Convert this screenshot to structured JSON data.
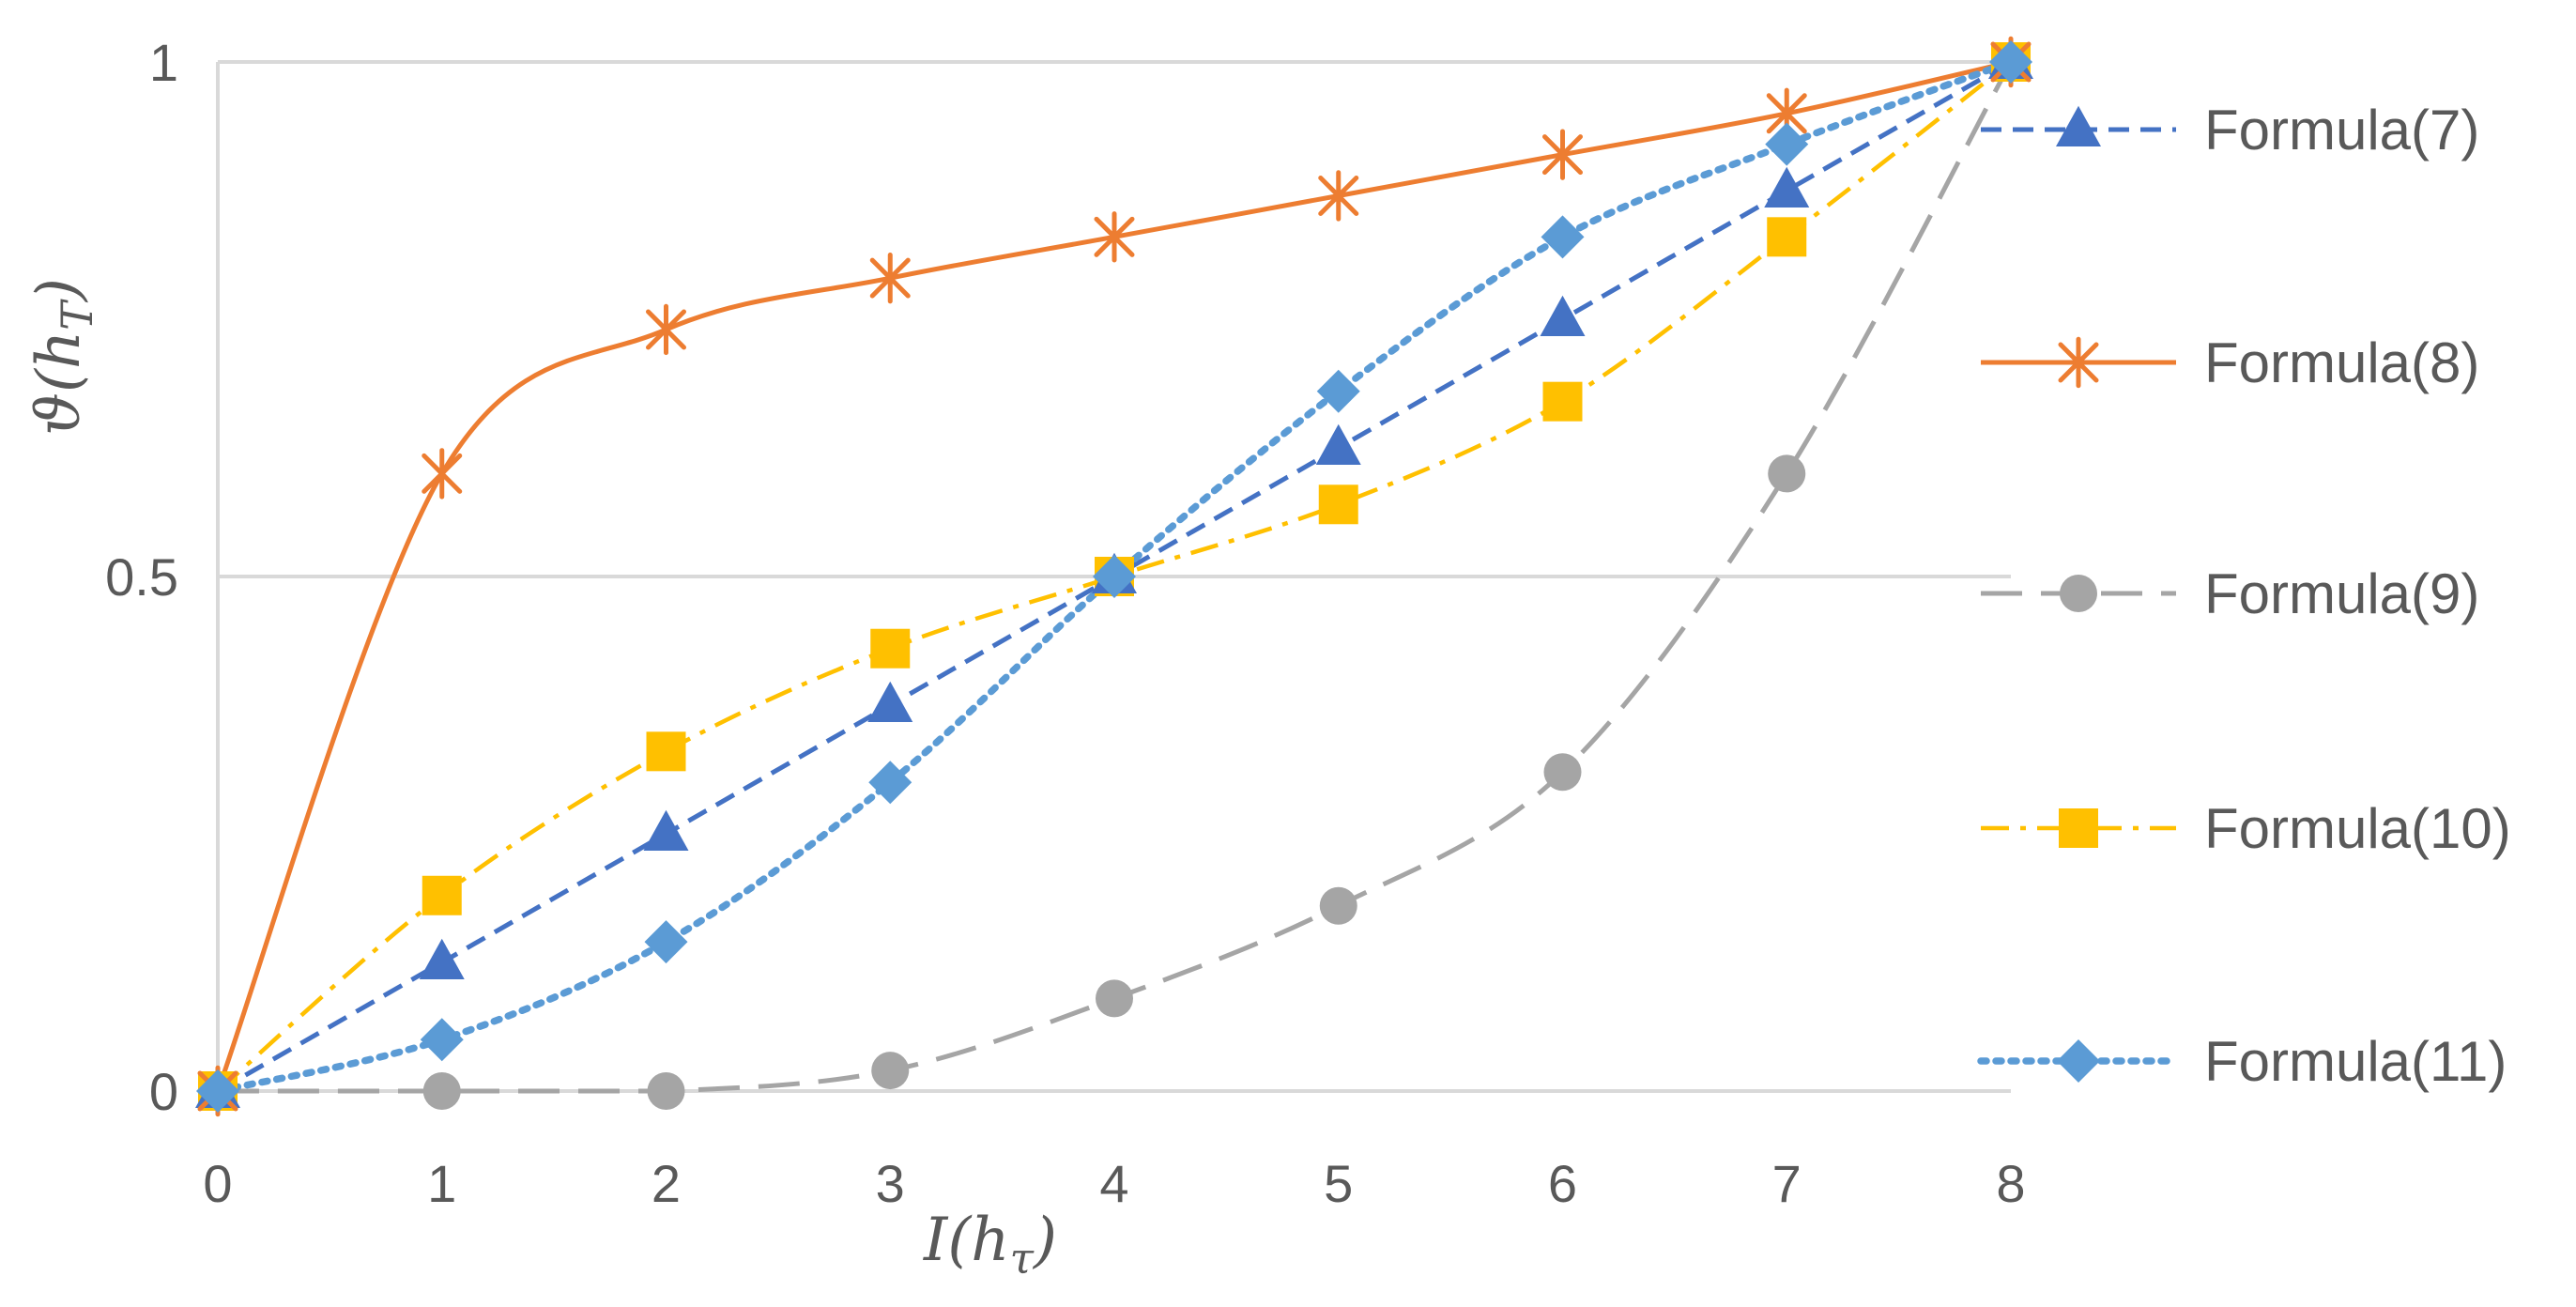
{
  "chart_data": {
    "type": "line",
    "title": "",
    "xlabel": "I(h_τ)",
    "xlabel_main": "I(h",
    "xlabel_sub": "τ",
    "xlabel_end": ")",
    "ylabel": "ϑ(h_T)",
    "ylabel_main": "ϑ(h",
    "ylabel_sub": "T",
    "ylabel_end": ")",
    "x": [
      0,
      1,
      2,
      3,
      4,
      5,
      6,
      7,
      8
    ],
    "x_ticks": [
      "0",
      "1",
      "2",
      "3",
      "4",
      "5",
      "6",
      "7",
      "8"
    ],
    "y_ticks": [
      "0",
      "0.5",
      "1"
    ],
    "xlim": [
      0,
      8
    ],
    "ylim": [
      0,
      1
    ],
    "grid": "horizontal",
    "legend_position": "right",
    "series": [
      {
        "name": "Formula(7)",
        "color": "#4472C4",
        "marker": "triangle",
        "line": "dash",
        "values": [
          0,
          0.125,
          0.25,
          0.375,
          0.5,
          0.625,
          0.75,
          0.875,
          1
        ]
      },
      {
        "name": "Formula(8)",
        "color": "#ED7D31",
        "marker": "star",
        "line": "solid",
        "values": [
          0,
          0.6,
          0.74,
          0.79,
          0.83,
          0.87,
          0.91,
          0.95,
          1
        ]
      },
      {
        "name": "Formula(9)",
        "color": "#A5A5A5",
        "marker": "circle",
        "line": "longdash",
        "values": [
          0,
          0,
          0,
          0.02,
          0.09,
          0.18,
          0.31,
          0.6,
          1
        ]
      },
      {
        "name": "Formula(10)",
        "color": "#FFC000",
        "marker": "square",
        "line": "dashdot",
        "values": [
          0,
          0.19,
          0.33,
          0.43,
          0.5,
          0.57,
          0.67,
          0.83,
          1
        ]
      },
      {
        "name": "Formula(11)",
        "color": "#5B9BD5",
        "marker": "diamond",
        "line": "dot",
        "values": [
          0,
          0.05,
          0.145,
          0.3,
          0.5,
          0.68,
          0.83,
          0.92,
          1
        ]
      }
    ]
  }
}
